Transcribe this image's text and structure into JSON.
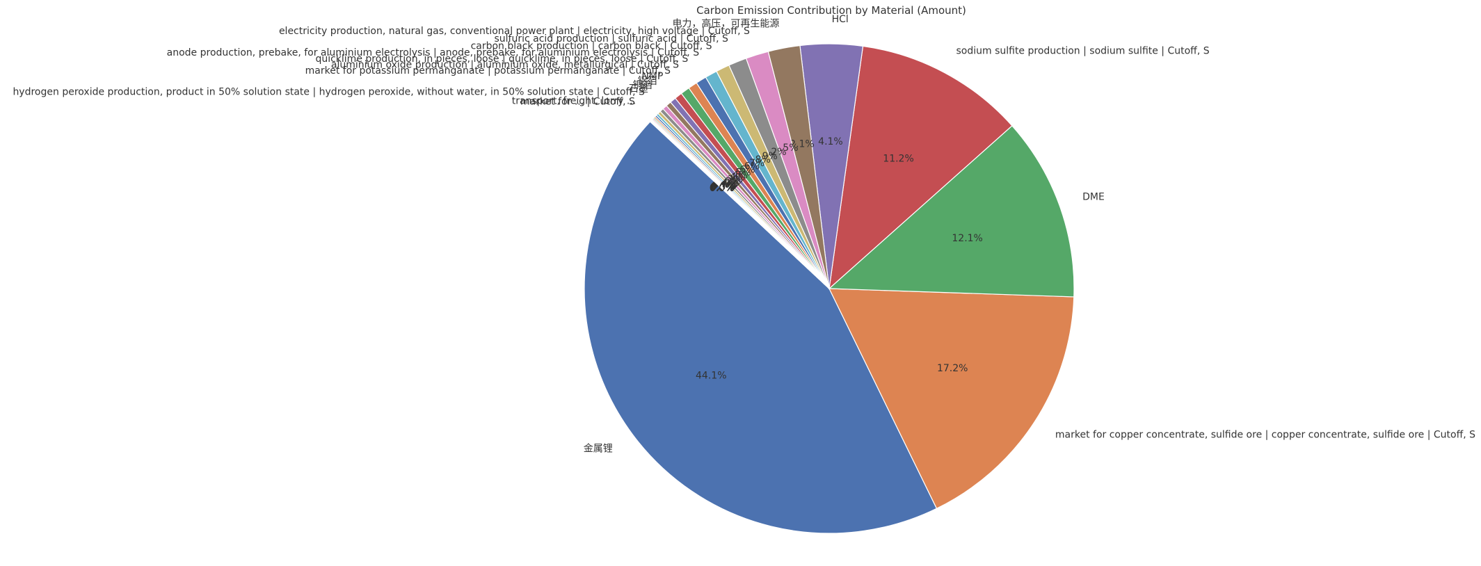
{
  "chart_data": {
    "type": "pie",
    "title": "Carbon Emission Contribution by Material (Amount)",
    "unit": "%",
    "start_angle_deg": 137,
    "direction": "counterclockwise",
    "slices": [
      {
        "label": "金属锂",
        "value": 44.1,
        "pct_label": "44.1%",
        "color": "#4c72b0"
      },
      {
        "label": "market for copper concentrate, sulfide ore | copper concentrate, sulfide ore | Cutoff, S",
        "value": 17.2,
        "pct_label": "17.2%",
        "color": "#dd8452"
      },
      {
        "label": "DME",
        "value": 12.1,
        "pct_label": "12.1%",
        "color": "#55a868"
      },
      {
        "label": "sodium sulfite production | sodium sulfite | Cutoff, S",
        "value": 11.2,
        "pct_label": "11.2%",
        "color": "#c44e52"
      },
      {
        "label": "HCl",
        "value": 4.1,
        "pct_label": "4.1%",
        "color": "#8172b3"
      },
      {
        "label": "电力，高压，可再生能源",
        "value": 2.1,
        "pct_label": "2.1%",
        "color": "#937860"
      },
      {
        "label": "electricity production, natural gas, conventional power plant | electricity, high voltage | Cutoff, S",
        "value": 1.5,
        "pct_label": "1.5%",
        "color": "#da8bc3"
      },
      {
        "label": "sulfuric acid production | sulfuric acid | Cutoff, S",
        "value": 1.2,
        "pct_label": "1.2%",
        "color": "#8c8c8c"
      },
      {
        "label": "carbon black production | carbon black | Cutoff, S",
        "value": 0.9,
        "pct_label": "0.9%",
        "color": "#ccb974"
      },
      {
        "label": "anode production, prebake, for aluminium electrolysis | anode, prebake, for aluminium electrolysis | Cutoff, S",
        "value": 0.8,
        "pct_label": "0.8%",
        "color": "#64b5cd"
      },
      {
        "label": "quicklime production, in pieces, loose | quicklime, in pieces, loose | Cutoff, S",
        "value": 0.7,
        "pct_label": "0.7%",
        "color": "#4c72b0"
      },
      {
        "label": "aluminium oxide production | aluminium oxide, metallurgical | Cutoff, S",
        "value": 0.6,
        "pct_label": "0.6%",
        "color": "#dd8452"
      },
      {
        "label": "market for potassium permanganate | potassium permanganate | Cutoff, S",
        "value": 0.6,
        "pct_label": "0.6%",
        "color": "#55a868"
      },
      {
        "label": "NMP",
        "value": 0.5,
        "pct_label": "0.5%",
        "color": "#c44e52"
      },
      {
        "label": "铝箔",
        "value": 0.4,
        "pct_label": "0.4%",
        "color": "#8172b3"
      },
      {
        "label": "铜箔",
        "value": 0.35,
        "pct_label": "0.4%",
        "color": "#937860"
      },
      {
        "label": "石墨",
        "value": 0.3,
        "pct_label": "0.3%",
        "color": "#da8bc3"
      },
      {
        "label": "hydrogen peroxide production, product in 50% solution state | hydrogen peroxide, without water, in 50% solution state | Cutoff, S",
        "value": 0.25,
        "pct_label": "0.2%",
        "color": "#8c8c8c"
      },
      {
        "label": "",
        "value": 0.2,
        "pct_label": "0.2%",
        "color": "#ccb974"
      },
      {
        "label": "",
        "value": 0.15,
        "pct_label": "0.1%",
        "color": "#64b5cd"
      },
      {
        "label": "",
        "value": 0.12,
        "pct_label": "0.1%",
        "color": "#4c72b0"
      },
      {
        "label": "",
        "value": 0.1,
        "pct_label": "0.1%",
        "color": "#dd8452"
      },
      {
        "label": "transport, freight, lorry ...",
        "value": 0.08,
        "pct_label": "0.1%",
        "color": "#55a868"
      },
      {
        "label": "market for ... | Cutoff, S",
        "value": 0.07,
        "pct_label": "0.1%",
        "color": "#c44e52"
      },
      {
        "label": "",
        "value": 0.06,
        "pct_label": "0.1%",
        "color": "#8172b3"
      },
      {
        "label": "",
        "value": 0.05,
        "pct_label": "0.0%",
        "color": "#937860"
      },
      {
        "label": "",
        "value": 0.04,
        "pct_label": "0.0%",
        "color": "#da8bc3"
      },
      {
        "label": "",
        "value": 0.03,
        "pct_label": "0.0%",
        "color": "#8c8c8c"
      },
      {
        "label": "",
        "value": 0.02,
        "pct_label": "0.0%",
        "color": "#ccb974"
      },
      {
        "label": "",
        "value": 0.01,
        "pct_label": "0.0%",
        "color": "#64b5cd"
      }
    ]
  }
}
